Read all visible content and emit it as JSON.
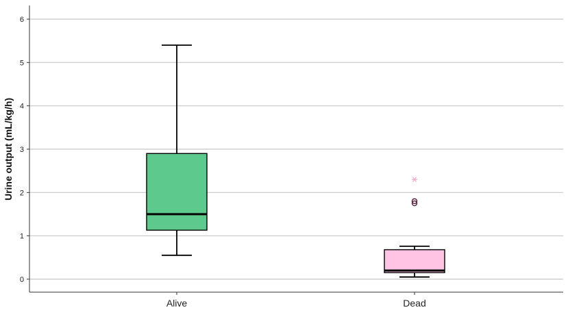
{
  "chart_data": {
    "type": "box",
    "title": "",
    "xlabel": "",
    "ylabel": "Urine output (mL/kg/h)",
    "ylim": [
      -0.3,
      6.35
    ],
    "yticks": [
      0,
      1,
      2,
      3,
      4,
      5,
      6
    ],
    "grid": true,
    "legend": "none",
    "categories": [
      "Alive",
      "Dead"
    ],
    "boxes": [
      {
        "category": "Alive",
        "whisker_low": 0.55,
        "q1": 1.13,
        "median": 1.5,
        "q3": 2.9,
        "whisker_high": 5.4,
        "fill": "#5ec98d",
        "outliers": [],
        "extremes": []
      },
      {
        "category": "Dead",
        "whisker_low": 0.05,
        "q1": 0.15,
        "median": 0.2,
        "q3": 0.68,
        "whisker_high": 0.76,
        "fill": "#ffc4e4",
        "outliers": [
          1.75,
          1.8
        ],
        "extremes": [
          2.3
        ]
      }
    ],
    "colors": {
      "grid": "#c8c8c8",
      "axis": "#333333",
      "outlier": "#5a2040",
      "extreme": "#f4a6c8"
    }
  }
}
